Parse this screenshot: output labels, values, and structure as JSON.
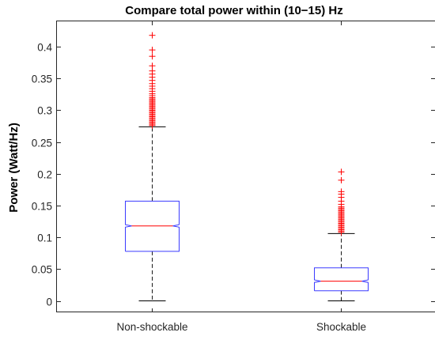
{
  "chart_data": {
    "type": "box",
    "title": "Compare total power within (10−15) Hz",
    "xlabel": "",
    "ylabel": "Power (Watt/Hz)",
    "ylim": [
      -0.018,
      0.44
    ],
    "yticks": [
      0,
      0.05,
      0.1,
      0.15,
      0.2,
      0.25,
      0.3,
      0.35,
      0.4
    ],
    "ytick_labels": [
      "0",
      "0.05",
      "0.1",
      "0.15",
      "0.2",
      "0.25",
      "0.3",
      "0.35",
      "0.4"
    ],
    "notched": true,
    "grid": false,
    "colors": {
      "box": "#3b3bff",
      "median": "#ff0000",
      "outlier": "#ff0000",
      "whisker": "#000000",
      "axis": "#262626"
    },
    "categories": [
      "Non-shockable",
      "Shockable"
    ],
    "boxes": [
      {
        "category": "Non-shockable",
        "whisker_low": 0.0,
        "q1": 0.078,
        "median": 0.118,
        "q3": 0.157,
        "whisker_high": 0.274,
        "notch_low": 0.116,
        "notch_high": 0.12,
        "outliers": [
          0.276,
          0.278,
          0.28,
          0.282,
          0.284,
          0.286,
          0.288,
          0.29,
          0.292,
          0.294,
          0.296,
          0.298,
          0.3,
          0.302,
          0.304,
          0.306,
          0.308,
          0.31,
          0.312,
          0.314,
          0.316,
          0.318,
          0.32,
          0.323,
          0.326,
          0.33,
          0.334,
          0.338,
          0.342,
          0.347,
          0.352,
          0.357,
          0.362,
          0.37,
          0.385,
          0.395,
          0.418
        ]
      },
      {
        "category": "Shockable",
        "whisker_low": 0.0,
        "q1": 0.016,
        "median": 0.031,
        "q3": 0.052,
        "whisker_high": 0.106,
        "notch_low": 0.029,
        "notch_high": 0.033,
        "outliers": [
          0.108,
          0.11,
          0.112,
          0.114,
          0.116,
          0.118,
          0.12,
          0.122,
          0.124,
          0.126,
          0.128,
          0.13,
          0.132,
          0.134,
          0.136,
          0.138,
          0.14,
          0.142,
          0.144,
          0.146,
          0.148,
          0.152,
          0.157,
          0.163,
          0.168,
          0.172,
          0.19,
          0.203
        ]
      }
    ]
  }
}
